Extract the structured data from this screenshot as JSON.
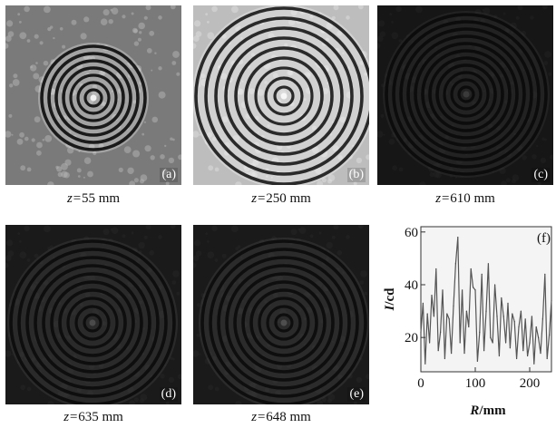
{
  "panels": [
    {
      "tag": "(a)",
      "z": "55",
      "unit": "mm"
    },
    {
      "tag": "(b)",
      "z": "250",
      "unit": "mm"
    },
    {
      "tag": "(c)",
      "z": "610",
      "unit": "mm"
    },
    {
      "tag": "(d)",
      "z": "635",
      "unit": "mm"
    },
    {
      "tag": "(e)",
      "z": "648",
      "unit": "mm"
    }
  ],
  "z_symbol": "z=",
  "chart_data": {
    "type": "line",
    "panel_tag": "(f)",
    "xlabel_var": "R",
    "xlabel_unit": "/mm",
    "ylabel_var": "I",
    "ylabel_unit": "/cd",
    "xlim": [
      0,
      240
    ],
    "ylim": [
      7,
      62
    ],
    "xticks": [
      0,
      100,
      200
    ],
    "yticks": [
      20,
      40,
      60
    ],
    "grid": false,
    "x": [
      0,
      4,
      8,
      12,
      16,
      20,
      24,
      28,
      32,
      36,
      40,
      44,
      48,
      52,
      56,
      60,
      64,
      68,
      72,
      76,
      80,
      84,
      88,
      92,
      96,
      100,
      104,
      108,
      112,
      116,
      120,
      124,
      128,
      132,
      136,
      140,
      144,
      148,
      152,
      156,
      160,
      164,
      168,
      172,
      176,
      180,
      184,
      188,
      192,
      196,
      200,
      204,
      208,
      212,
      216,
      220,
      224,
      228,
      232,
      236,
      240
    ],
    "y": [
      22,
      33,
      10,
      29,
      18,
      36,
      28,
      46,
      15,
      22,
      38,
      12,
      29,
      27,
      14,
      32,
      48,
      58,
      18,
      38,
      14,
      30,
      24,
      46,
      39,
      38,
      11,
      22,
      44,
      15,
      30,
      48,
      20,
      18,
      40,
      28,
      13,
      35,
      28,
      18,
      33,
      16,
      29,
      26,
      12,
      24,
      30,
      15,
      27,
      13,
      18,
      28,
      10,
      24,
      20,
      14,
      27,
      44,
      12,
      21,
      34
    ]
  }
}
